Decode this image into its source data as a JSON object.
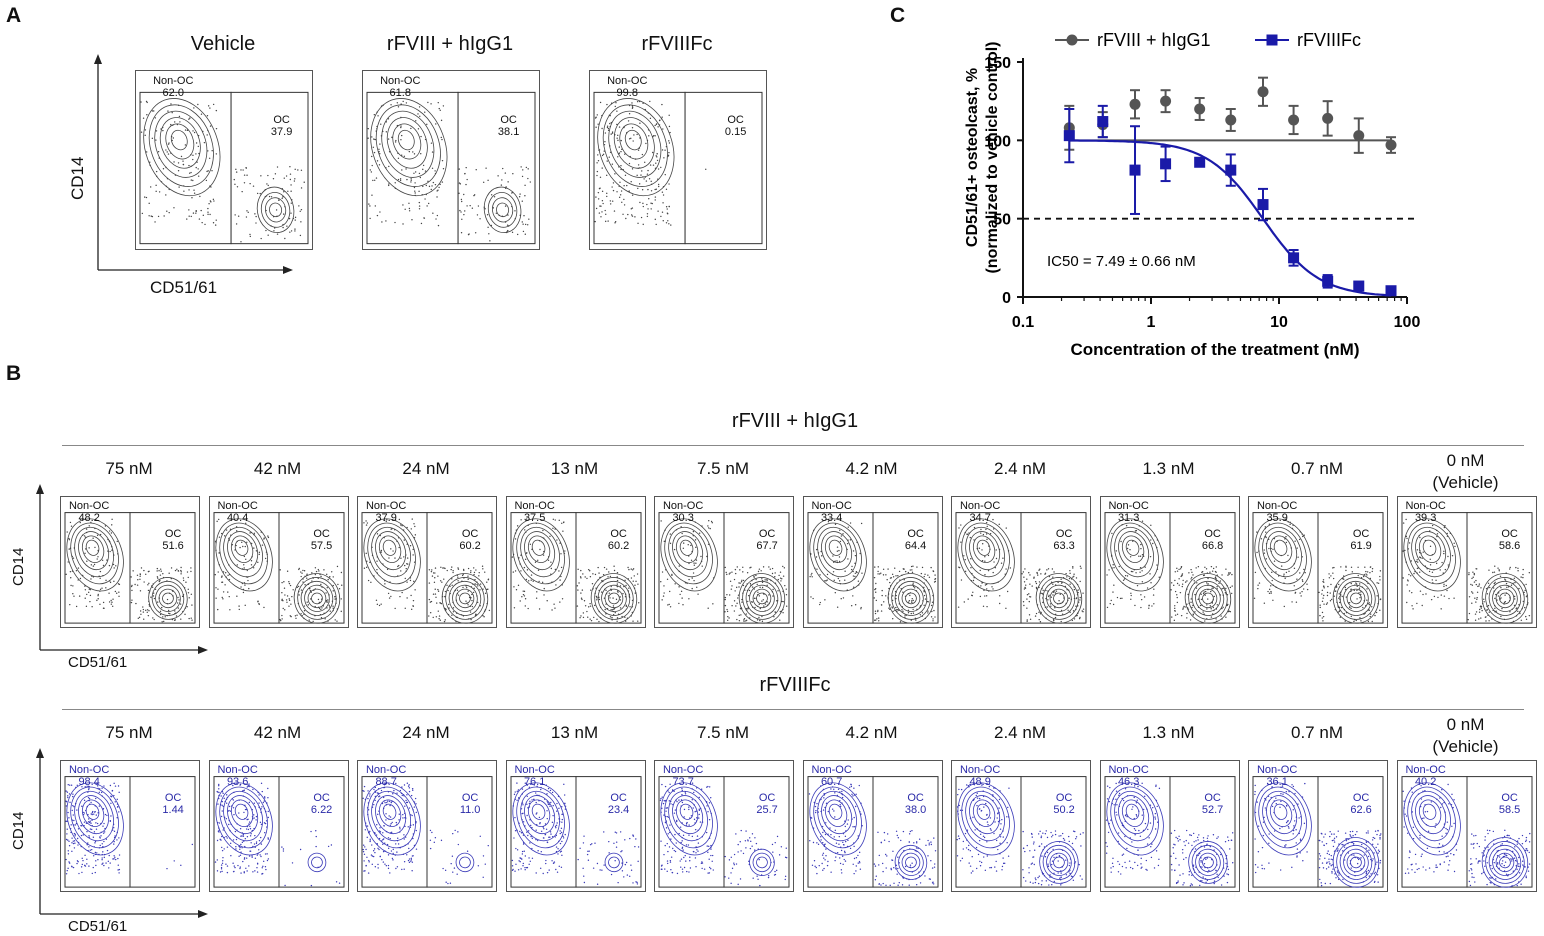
{
  "panels": {
    "a": "A",
    "b": "B",
    "c": "C"
  },
  "panel_a": {
    "y_axis": "CD14",
    "x_axis": "CD51/61",
    "gate_left_name": "Non-OC",
    "gate_right_name": "OC",
    "plots": [
      {
        "title": "Vehicle",
        "non_oc": "62.0",
        "oc": "37.9"
      },
      {
        "title": "rFVIII + hIgG1",
        "non_oc": "61.8",
        "oc": "38.1"
      },
      {
        "title": "rFVIIIFc",
        "non_oc": "99.8",
        "oc": "0.15"
      }
    ]
  },
  "panel_b": {
    "y_axis": "CD14",
    "x_axis": "CD51/61",
    "gate_left_name": "Non-OC",
    "gate_right_name": "OC",
    "groups": [
      {
        "title": "rFVIII + hIgG1",
        "plots": [
          {
            "conc": "75 nM",
            "non_oc": "48.2",
            "oc": "51.6"
          },
          {
            "conc": "42 nM",
            "non_oc": "40.4",
            "oc": "57.5"
          },
          {
            "conc": "24 nM",
            "non_oc": "37.9",
            "oc": "60.2"
          },
          {
            "conc": "13 nM",
            "non_oc": "37.5",
            "oc": "60.2"
          },
          {
            "conc": "7.5 nM",
            "non_oc": "30.3",
            "oc": "67.7"
          },
          {
            "conc": "4.2 nM",
            "non_oc": "33.4",
            "oc": "64.4"
          },
          {
            "conc": "2.4 nM",
            "non_oc": "34.7",
            "oc": "63.3"
          },
          {
            "conc": "1.3 nM",
            "non_oc": "31.3",
            "oc": "66.8"
          },
          {
            "conc": "0.7 nM",
            "non_oc": "35.9",
            "oc": "61.9"
          },
          {
            "conc": "0 nM",
            "conc2": "(Vehicle)",
            "non_oc": "39.3",
            "oc": "58.6"
          }
        ]
      },
      {
        "title": "rFVIIIFc",
        "plots": [
          {
            "conc": "75 nM",
            "non_oc": "98.4",
            "oc": "1.44"
          },
          {
            "conc": "42 nM",
            "non_oc": "93.6",
            "oc": "6.22"
          },
          {
            "conc": "24 nM",
            "non_oc": "88.7",
            "oc": "11.0"
          },
          {
            "conc": "13 nM",
            "non_oc": "76.1",
            "oc": "23.4"
          },
          {
            "conc": "7.5 nM",
            "non_oc": "73.7",
            "oc": "25.7"
          },
          {
            "conc": "4.2 nM",
            "non_oc": "60.7",
            "oc": "38.0"
          },
          {
            "conc": "2.4 nM",
            "non_oc": "48.9",
            "oc": "50.2"
          },
          {
            "conc": "1.3 nM",
            "non_oc": "46.3",
            "oc": "52.7"
          },
          {
            "conc": "0.7 nM",
            "non_oc": "36.1",
            "oc": "62.6"
          },
          {
            "conc": "0 nM",
            "conc2": "(Vehicle)",
            "non_oc": "40.2",
            "oc": "58.5"
          }
        ]
      }
    ]
  },
  "chart_data": {
    "type": "scatter",
    "title": "",
    "xlabel": "Concentration of the treatment (nM)",
    "ylabel_line1": "CD51/61+ osteolcast, %",
    "ylabel_line2": "(normalized to vehicle control)",
    "xscale": "log",
    "xlim": [
      0.1,
      100
    ],
    "ylim": [
      0,
      150
    ],
    "xticks": [
      0.1,
      1,
      10,
      100
    ],
    "xtick_labels": [
      "0.1",
      "1",
      "10",
      "100"
    ],
    "yticks": [
      0,
      50,
      100,
      150
    ],
    "ytick_labels": [
      "0",
      "50",
      "100",
      "150"
    ],
    "reference_line": {
      "y": 50,
      "style": "dashed"
    },
    "annotation": "IC50 = 7.49 ± 0.66 nM",
    "legend_position": "top",
    "series": [
      {
        "name": "rFVIII + hIgG1",
        "color": "#555555",
        "marker": "circle",
        "x": [
          0.23,
          0.42,
          0.75,
          1.3,
          2.4,
          4.2,
          7.5,
          13,
          24,
          42,
          75
        ],
        "y": [
          108,
          110,
          123,
          125,
          120,
          113,
          131,
          113,
          114,
          103,
          97
        ],
        "err": [
          14,
          8,
          9,
          7,
          7,
          7,
          9,
          9,
          11,
          11,
          5
        ],
        "fit": "flat",
        "fit_value": 100
      },
      {
        "name": "rFVIIIFc",
        "color": "#1a1aa8",
        "marker": "square",
        "x": [
          0.23,
          0.42,
          0.75,
          1.3,
          2.4,
          4.2,
          7.5,
          13,
          24,
          42,
          75
        ],
        "y": [
          103,
          112,
          81,
          85,
          86,
          81,
          59,
          25,
          10,
          7,
          4
        ],
        "err": [
          17,
          10,
          28,
          11,
          2,
          10,
          10,
          5,
          4,
          1,
          1
        ],
        "fit": "sigmoid",
        "ic50": 7.49,
        "hill": 2
      }
    ]
  },
  "colors": {
    "gray": "#555555",
    "blue": "#1a1aa8",
    "contour_blue": "#3a3ab8"
  }
}
